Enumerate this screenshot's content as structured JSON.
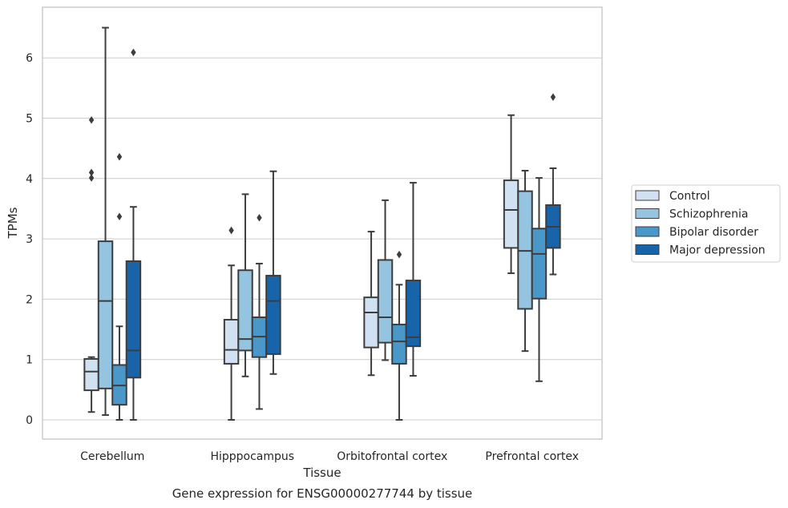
{
  "chart_data": {
    "type": "box",
    "caption": "Gene expression for ENSG00000277744 by tissue",
    "xlabel": "Tissue",
    "ylabel": "TPMs",
    "ylim": [
      -0.32,
      6.85
    ],
    "yticks": [
      0,
      1,
      2,
      3,
      4,
      5,
      6
    ],
    "grid": "horizontal",
    "legend_position": "right",
    "categories": [
      "Cerebellum",
      "Hipppocampus",
      "Orbitofrontal cortex",
      "Prefrontal cortex"
    ],
    "series": [
      {
        "name": "Control",
        "color": "#d0e1f2",
        "boxes": [
          {
            "whisker_low": 0.13,
            "q1": 0.49,
            "median": 0.8,
            "q3": 1.01,
            "whisker_high": 1.04,
            "outliers": [
              4.97,
              4.1,
              4.01
            ]
          },
          {
            "whisker_low": 0.0,
            "q1": 0.93,
            "median": 1.16,
            "q3": 1.66,
            "whisker_high": 2.56,
            "outliers": [
              3.14
            ]
          },
          {
            "whisker_low": 0.74,
            "q1": 1.2,
            "median": 1.78,
            "q3": 2.03,
            "whisker_high": 3.12,
            "outliers": []
          },
          {
            "whisker_low": 2.43,
            "q1": 2.85,
            "median": 3.48,
            "q3": 3.97,
            "whisker_high": 5.05,
            "outliers": []
          }
        ]
      },
      {
        "name": "Schizophrenia",
        "color": "#94c4df",
        "boxes": [
          {
            "whisker_low": 0.08,
            "q1": 0.52,
            "median": 1.97,
            "q3": 2.96,
            "whisker_high": 6.5,
            "outliers": []
          },
          {
            "whisker_low": 0.72,
            "q1": 1.15,
            "median": 1.34,
            "q3": 2.48,
            "whisker_high": 3.74,
            "outliers": []
          },
          {
            "whisker_low": 0.99,
            "q1": 1.28,
            "median": 1.7,
            "q3": 2.65,
            "whisker_high": 3.64,
            "outliers": []
          },
          {
            "whisker_low": 1.14,
            "q1": 1.84,
            "median": 2.8,
            "q3": 3.79,
            "whisker_high": 4.13,
            "outliers": []
          }
        ]
      },
      {
        "name": "Bipolar disorder",
        "color": "#4a98c9",
        "boxes": [
          {
            "whisker_low": 0.0,
            "q1": 0.25,
            "median": 0.57,
            "q3": 0.91,
            "whisker_high": 1.55,
            "outliers": [
              4.36,
              3.37
            ]
          },
          {
            "whisker_low": 0.18,
            "q1": 1.04,
            "median": 1.38,
            "q3": 1.7,
            "whisker_high": 2.59,
            "outliers": [
              3.35
            ]
          },
          {
            "whisker_low": 0.0,
            "q1": 0.93,
            "median": 1.3,
            "q3": 1.58,
            "whisker_high": 2.24,
            "outliers": [
              2.74
            ]
          },
          {
            "whisker_low": 0.64,
            "q1": 2.01,
            "median": 2.75,
            "q3": 3.17,
            "whisker_high": 4.01,
            "outliers": []
          }
        ]
      },
      {
        "name": "Major depression",
        "color": "#1764ab",
        "boxes": [
          {
            "whisker_low": 0.0,
            "q1": 0.7,
            "median": 1.15,
            "q3": 2.63,
            "whisker_high": 3.53,
            "outliers": [
              6.09
            ]
          },
          {
            "whisker_low": 0.76,
            "q1": 1.09,
            "median": 1.97,
            "q3": 2.39,
            "whisker_high": 4.12,
            "outliers": []
          },
          {
            "whisker_low": 0.73,
            "q1": 1.22,
            "median": 1.37,
            "q3": 2.31,
            "whisker_high": 3.93,
            "outliers": []
          },
          {
            "whisker_low": 2.41,
            "q1": 2.85,
            "median": 3.2,
            "q3": 3.56,
            "whisker_high": 4.17,
            "outliers": [
              5.35
            ]
          }
        ]
      }
    ]
  }
}
